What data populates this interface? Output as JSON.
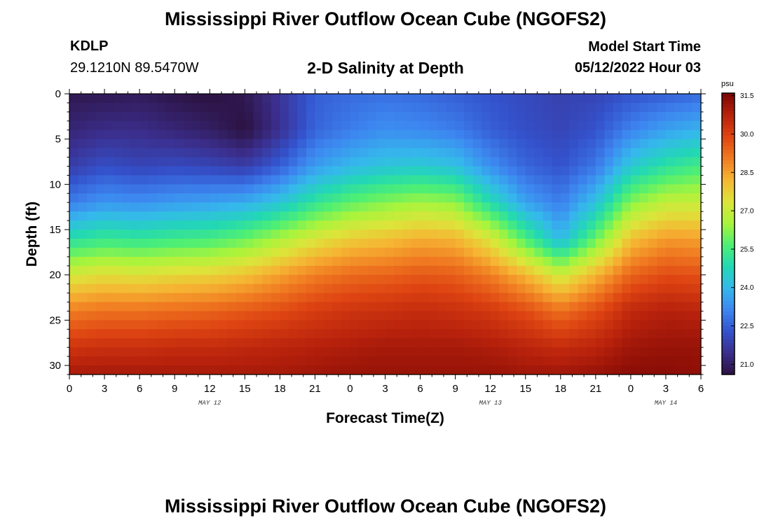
{
  "header": {
    "title": "Mississippi River Outflow Ocean Cube (NGOFS2)",
    "station_id": "KDLP",
    "coordinates": "29.1210N  89.5470W",
    "subtitle": "2-D Salinity at Depth",
    "model_start_label": "Model Start Time",
    "model_start_value": "05/12/2022 Hour 03"
  },
  "footer": {
    "title": "Mississippi River Outflow Ocean Cube (NGOFS2)"
  },
  "chart_data": {
    "type": "heatmap",
    "xlabel": "Forecast Time(Z)",
    "ylabel": "Depth (ft)",
    "x_tick_labels": [
      "0",
      "3",
      "6",
      "9",
      "12",
      "15",
      "18",
      "21",
      "0",
      "3",
      "6",
      "9",
      "12",
      "15",
      "18",
      "21",
      "0",
      "3",
      "6"
    ],
    "x_range_hours": [
      0,
      54
    ],
    "date_labels": [
      {
        "text": "MAY 12",
        "hour": 12
      },
      {
        "text": "MAY 13",
        "hour": 36
      },
      {
        "text": "MAY 14",
        "hour": 51
      }
    ],
    "y_tick_labels": [
      "0",
      "5",
      "10",
      "15",
      "20",
      "25",
      "30"
    ],
    "y_range": [
      0,
      31
    ],
    "y_reversed": true,
    "colorbar": {
      "unit": "psu",
      "ticks": [
        "31.5",
        "30.0",
        "28.5",
        "27.0",
        "25.5",
        "24.0",
        "22.5",
        "21.0"
      ],
      "range": [
        20.6,
        31.6
      ],
      "colors": [
        "#2c1240",
        "#3b2e8c",
        "#3452cc",
        "#3d86f0",
        "#35b8ec",
        "#22d8b4",
        "#4eef74",
        "#a8f43c",
        "#dde43a",
        "#f6b533",
        "#f07a21",
        "#de4412",
        "#b8220c",
        "#7a0604"
      ]
    },
    "salinity_profile": {
      "times_hours": [
        0,
        3,
        6,
        9,
        12,
        15,
        18,
        21,
        24,
        27,
        30,
        33,
        36,
        39,
        42,
        45,
        48,
        51,
        54
      ],
      "depths_ft": [
        0,
        4,
        8,
        12,
        16,
        20,
        24,
        28,
        31
      ],
      "values_psu": [
        [
          20.8,
          21.2,
          21.8,
          23.0,
          25.0,
          27.2,
          29.0,
          30.3,
          31.0
        ],
        [
          20.8,
          21.4,
          22.2,
          23.4,
          25.3,
          27.5,
          29.2,
          30.4,
          31.0
        ],
        [
          20.9,
          21.4,
          22.0,
          23.3,
          25.2,
          27.4,
          29.2,
          30.4,
          31.0
        ],
        [
          20.7,
          21.2,
          22.1,
          23.5,
          25.4,
          27.6,
          29.3,
          30.5,
          31.0
        ],
        [
          20.6,
          21.0,
          22.0,
          23.6,
          25.5,
          27.7,
          29.4,
          30.5,
          31.0
        ],
        [
          20.8,
          20.6,
          21.8,
          23.8,
          25.9,
          28.0,
          29.6,
          30.6,
          31.0
        ],
        [
          21.6,
          21.5,
          22.5,
          24.3,
          26.6,
          28.5,
          29.8,
          30.7,
          31.0
        ],
        [
          22.5,
          22.6,
          23.5,
          25.2,
          27.3,
          29.0,
          30.1,
          30.8,
          31.1
        ],
        [
          22.7,
          23.0,
          24.0,
          25.8,
          27.8,
          29.3,
          30.3,
          30.9,
          31.2
        ],
        [
          22.8,
          23.3,
          24.3,
          26.2,
          28.0,
          29.4,
          30.4,
          31.0,
          31.2
        ],
        [
          22.7,
          23.2,
          24.4,
          26.5,
          28.3,
          29.6,
          30.5,
          31.0,
          31.2
        ],
        [
          22.5,
          23.0,
          24.2,
          26.3,
          28.2,
          29.5,
          30.4,
          31.0,
          31.2
        ],
        [
          22.3,
          22.5,
          23.3,
          24.9,
          27.3,
          29.0,
          30.2,
          30.9,
          31.2
        ],
        [
          22.1,
          22.2,
          22.6,
          23.6,
          25.6,
          28.2,
          29.8,
          30.7,
          31.1
        ],
        [
          21.9,
          22.0,
          22.3,
          23.0,
          24.0,
          27.1,
          29.2,
          30.5,
          31.1
        ],
        [
          22.0,
          22.3,
          22.9,
          24.2,
          25.9,
          28.2,
          29.8,
          30.7,
          31.2
        ],
        [
          22.3,
          23.1,
          24.4,
          26.2,
          28.0,
          29.4,
          30.6,
          31.1,
          31.4
        ],
        [
          22.5,
          23.6,
          25.1,
          26.9,
          28.6,
          29.8,
          30.8,
          31.2,
          31.4
        ],
        [
          22.7,
          23.9,
          25.5,
          27.0,
          28.5,
          29.7,
          30.7,
          31.2,
          31.3
        ]
      ]
    }
  }
}
